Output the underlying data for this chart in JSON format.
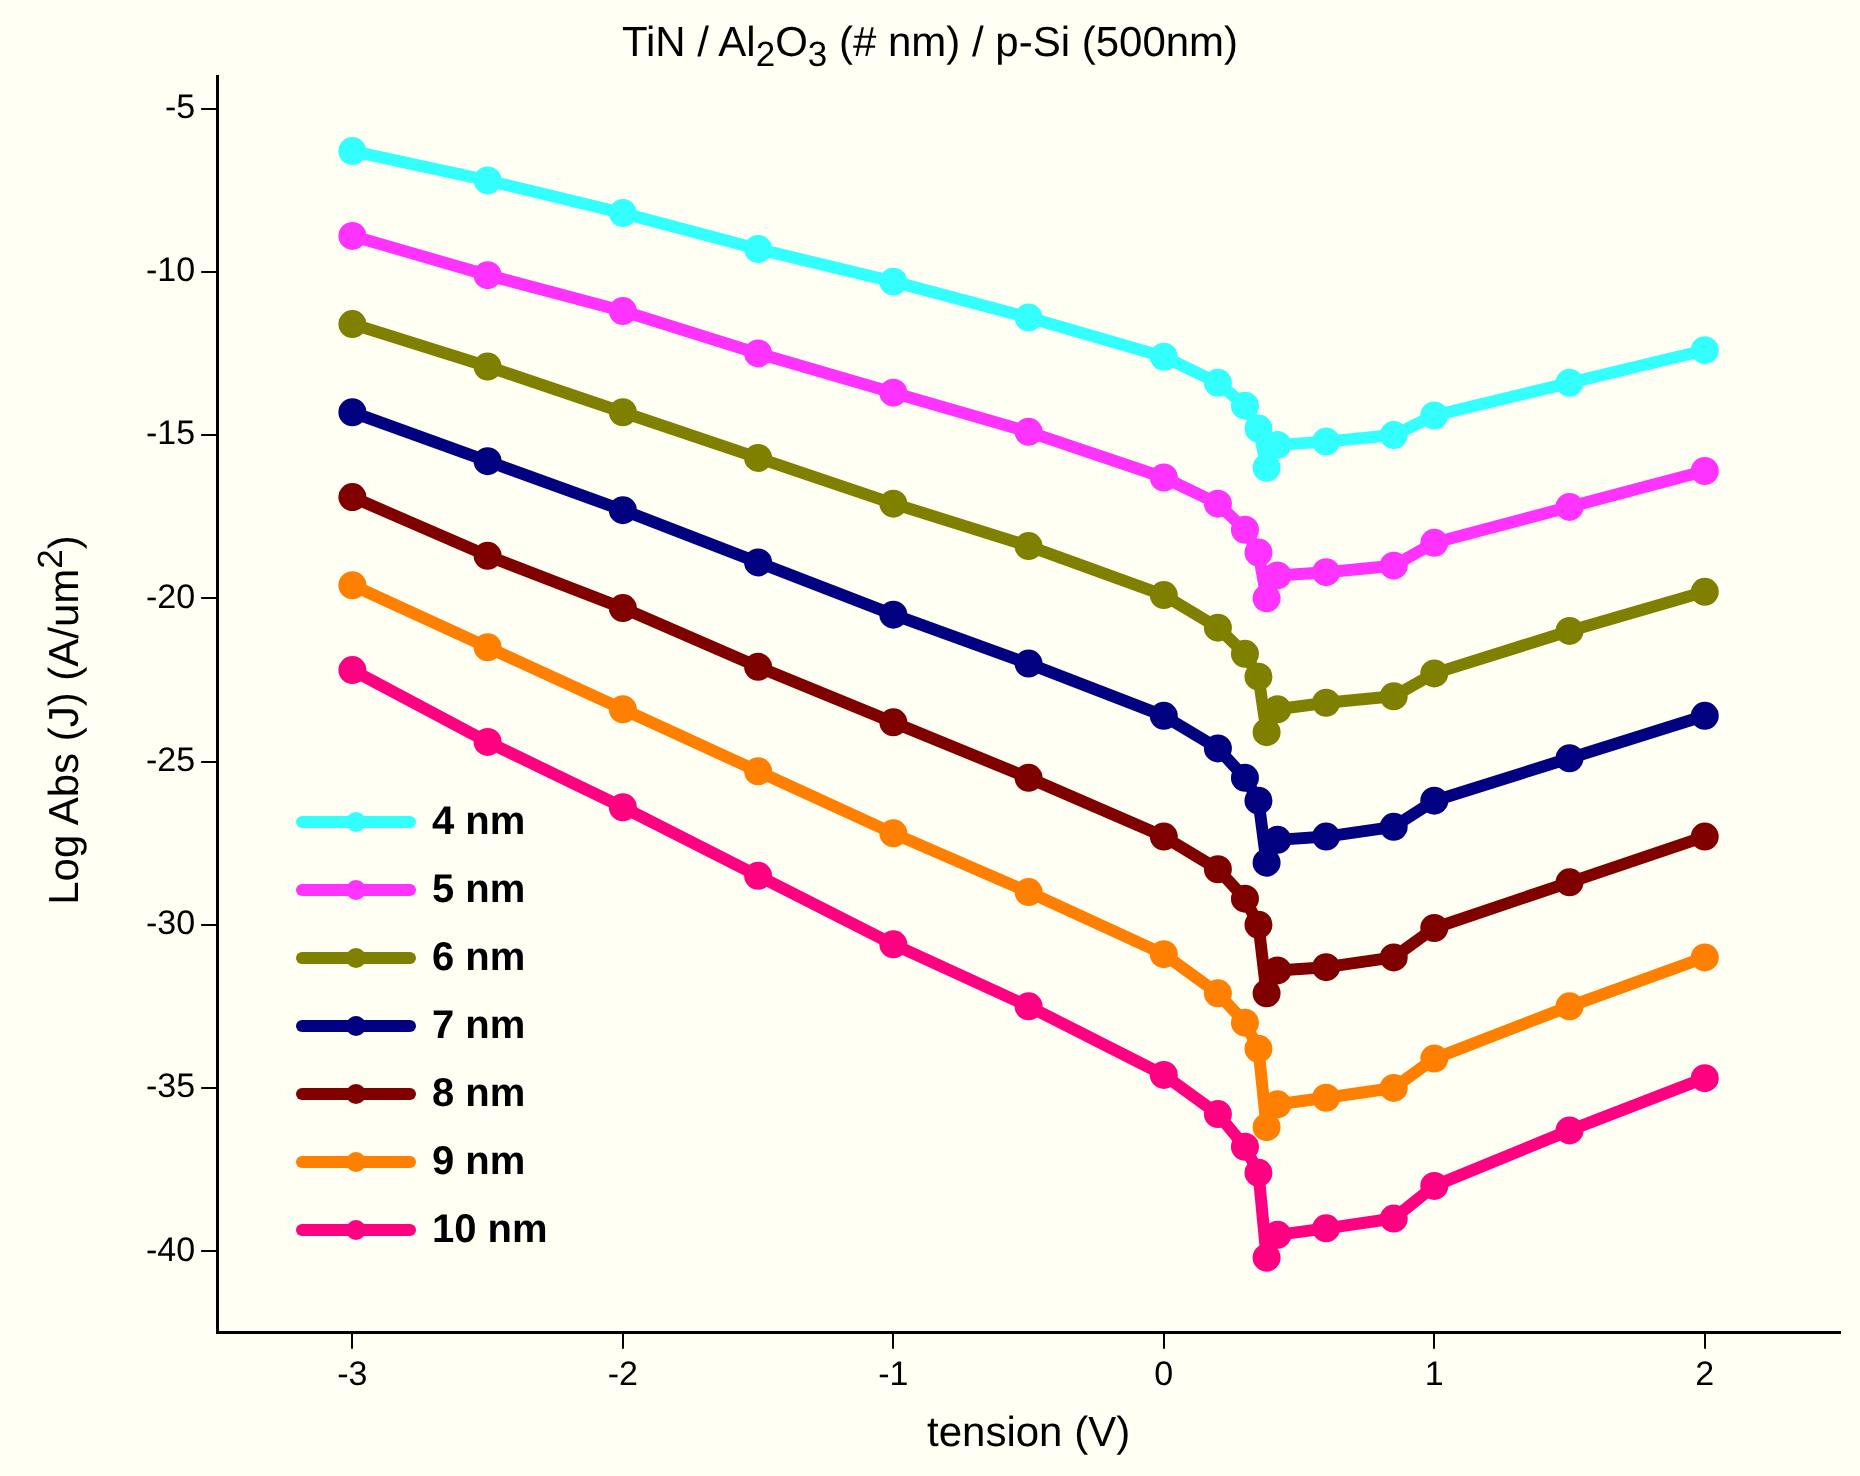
{
  "chart_data": {
    "type": "line",
    "title": "TiN / Al$_{2}$O$_{3}$ (# nm) / p-Si (500nm)",
    "xlabel": "tension (V)",
    "ylabel": "Log Abs (J) (A/um$^{2}$)",
    "x": [
      -3,
      -2.5,
      -2,
      -1.5,
      -1,
      -0.5,
      0,
      0.2,
      0.3,
      0.35,
      0.38,
      0.42,
      0.6,
      0.85,
      1.0,
      1.5,
      2
    ],
    "series": [
      {
        "name": "4 nm",
        "color": "#33ffff",
        "values": [
          -6.3,
          -7.2,
          -8.2,
          -9.3,
          -10.3,
          -11.4,
          -12.6,
          -13.4,
          -14.1,
          -14.8,
          -16.0,
          -15.3,
          -15.2,
          -15.0,
          -14.4,
          -13.4,
          -12.4
        ]
      },
      {
        "name": "5 nm",
        "color": "#ff33ff",
        "values": [
          -8.9,
          -10.1,
          -11.2,
          -12.5,
          -13.7,
          -14.9,
          -16.3,
          -17.1,
          -17.9,
          -18.6,
          -20.0,
          -19.3,
          -19.2,
          -19.0,
          -18.3,
          -17.2,
          -16.1
        ]
      },
      {
        "name": "6 nm",
        "color": "#808000",
        "values": [
          -11.6,
          -12.9,
          -14.3,
          -15.7,
          -17.1,
          -18.4,
          -19.9,
          -20.9,
          -21.7,
          -22.4,
          -24.1,
          -23.4,
          -23.2,
          -23.0,
          -22.3,
          -21.0,
          -19.8
        ]
      },
      {
        "name": "7 nm",
        "color": "#000080",
        "values": [
          -14.3,
          -15.8,
          -17.3,
          -18.9,
          -20.5,
          -22.0,
          -23.6,
          -24.6,
          -25.5,
          -26.2,
          -28.1,
          -27.4,
          -27.3,
          -27.0,
          -26.2,
          -24.9,
          -23.6
        ]
      },
      {
        "name": "8 nm",
        "color": "#800000",
        "values": [
          -16.9,
          -18.7,
          -20.3,
          -22.1,
          -23.8,
          -25.5,
          -27.3,
          -28.3,
          -29.2,
          -30.0,
          -32.1,
          -31.4,
          -31.3,
          -31.0,
          -30.1,
          -28.7,
          -27.3
        ]
      },
      {
        "name": "9 nm",
        "color": "#ff8000",
        "values": [
          -19.6,
          -21.5,
          -23.4,
          -25.3,
          -27.2,
          -29.0,
          -30.9,
          -32.1,
          -33.0,
          -33.8,
          -36.2,
          -35.5,
          -35.3,
          -35.0,
          -34.1,
          -32.5,
          -31.0
        ]
      },
      {
        "name": "10 nm",
        "color": "#ff0080",
        "values": [
          -22.2,
          -24.4,
          -26.4,
          -28.5,
          -30.6,
          -32.5,
          -34.6,
          -35.8,
          -36.8,
          -37.6,
          -40.2,
          -39.5,
          -39.3,
          -39.0,
          -38.0,
          -36.3,
          -34.7
        ]
      }
    ],
    "xlim": [
      -3.5,
      2.5
    ],
    "xticks": [
      -3,
      -2,
      -1,
      0,
      1,
      2
    ],
    "ylim": [
      -42.5,
      -4
    ],
    "yticks": [
      -5,
      -10,
      -15,
      -20,
      -25,
      -30,
      -35,
      -40
    ],
    "legend": "bottom left",
    "marker": "circle",
    "line_style": "solid",
    "grid": false
  }
}
